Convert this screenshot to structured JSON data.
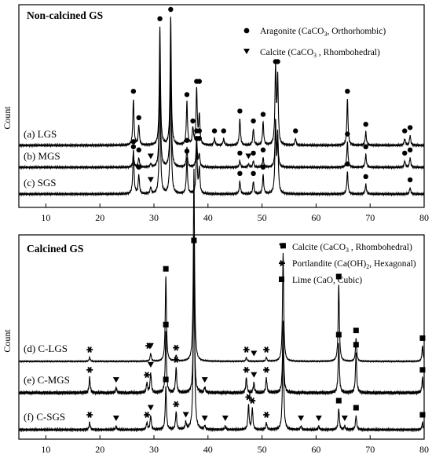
{
  "chart_data": [
    {
      "type": "line",
      "title": "Non-calcined GS",
      "xlabel": "",
      "ylabel": "Count",
      "xlim": [
        5,
        80
      ],
      "xticks": [
        10,
        20,
        30,
        40,
        50,
        60,
        70,
        80
      ],
      "legend": [
        {
          "marker": "circle",
          "label": "Aragonite (CaCO3, Orthorhombic)"
        },
        {
          "marker": "triangle",
          "label": "Calcite (CaCO3 , Rhombohedral)"
        }
      ],
      "series": [
        {
          "name": "(a) LGS",
          "peaks": [
            [
              26.2,
              14
            ],
            [
              27.2,
              6
            ],
            [
              31.1,
              36
            ],
            [
              33.1,
              39
            ],
            [
              36.1,
              13
            ],
            [
              37.2,
              5
            ],
            [
              37.9,
              17
            ],
            [
              38.4,
              9
            ],
            [
              41.2,
              2
            ],
            [
              42.9,
              2
            ],
            [
              45.9,
              8
            ],
            [
              48.4,
              5
            ],
            [
              50.2,
              7
            ],
            [
              52.5,
              23
            ],
            [
              52.9,
              20
            ],
            [
              56.2,
              2
            ],
            [
              65.8,
              14
            ],
            [
              69.2,
              4
            ],
            [
              76.4,
              2
            ],
            [
              77.4,
              3
            ]
          ],
          "markers": [
            {
              "x": 26.2,
              "type": "circle"
            },
            {
              "x": 27.2,
              "type": "circle"
            },
            {
              "x": 31.1,
              "type": "circle"
            },
            {
              "x": 33.1,
              "type": "circle"
            },
            {
              "x": 36.1,
              "type": "circle"
            },
            {
              "x": 37.2,
              "type": "circle"
            },
            {
              "x": 37.9,
              "type": "circle"
            },
            {
              "x": 38.4,
              "type": "circle"
            },
            {
              "x": 41.2,
              "type": "circle"
            },
            {
              "x": 42.9,
              "type": "circle"
            },
            {
              "x": 45.9,
              "type": "circle"
            },
            {
              "x": 48.4,
              "type": "circle"
            },
            {
              "x": 50.2,
              "type": "circle"
            },
            {
              "x": 52.5,
              "type": "circle"
            },
            {
              "x": 52.9,
              "type": "circle"
            },
            {
              "x": 56.2,
              "type": "circle"
            },
            {
              "x": 65.8,
              "type": "circle"
            },
            {
              "x": 69.2,
              "type": "circle"
            },
            {
              "x": 76.4,
              "type": "circle"
            },
            {
              "x": 77.4,
              "type": "circle"
            }
          ]
        },
        {
          "name": "(b) MGS",
          "peaks": [
            [
              26.2,
              4
            ],
            [
              27.2,
              3
            ],
            [
              29.4,
              1
            ],
            [
              31.1,
              34
            ],
            [
              33.1,
              38
            ],
            [
              36.1,
              6
            ],
            [
              37.9,
              9
            ],
            [
              38.4,
              4
            ],
            [
              45.9,
              2
            ],
            [
              47.5,
              1
            ],
            [
              48.4,
              2
            ],
            [
              50.2,
              3
            ],
            [
              52.5,
              12
            ],
            [
              52.9,
              9
            ],
            [
              65.8,
              8
            ],
            [
              69.2,
              4
            ],
            [
              76.4,
              2
            ],
            [
              77.4,
              3
            ]
          ],
          "markers": [
            {
              "x": 26.2,
              "type": "circle"
            },
            {
              "x": 27.2,
              "type": "circle"
            },
            {
              "x": 29.4,
              "type": "triangle"
            },
            {
              "x": 36.1,
              "type": "circle"
            },
            {
              "x": 37.9,
              "type": "circle"
            },
            {
              "x": 38.4,
              "type": "circle"
            },
            {
              "x": 45.9,
              "type": "circle"
            },
            {
              "x": 47.5,
              "type": "triangle"
            },
            {
              "x": 48.4,
              "type": "circle"
            },
            {
              "x": 50.2,
              "type": "circle"
            },
            {
              "x": 65.8,
              "type": "circle"
            },
            {
              "x": 69.2,
              "type": "circle"
            },
            {
              "x": 76.4,
              "type": "circle"
            },
            {
              "x": 77.4,
              "type": "circle"
            }
          ]
        },
        {
          "name": "(c) SGS",
          "peaks": [
            [
              26.2,
              14
            ],
            [
              27.2,
              6
            ],
            [
              29.4,
              2
            ],
            [
              31.1,
              36
            ],
            [
              33.1,
              39
            ],
            [
              36.1,
              11
            ],
            [
              37.9,
              15
            ],
            [
              38.4,
              8
            ],
            [
              45.9,
              4
            ],
            [
              48.4,
              4
            ],
            [
              50.2,
              6
            ],
            [
              52.5,
              22
            ],
            [
              52.9,
              18
            ],
            [
              65.8,
              7
            ],
            [
              69.2,
              3
            ],
            [
              77.4,
              2
            ]
          ],
          "markers": [
            {
              "x": 26.2,
              "type": "circle"
            },
            {
              "x": 27.2,
              "type": "circle"
            },
            {
              "x": 29.4,
              "type": "triangle"
            },
            {
              "x": 36.1,
              "type": "circle"
            },
            {
              "x": 37.9,
              "type": "circle"
            },
            {
              "x": 38.4,
              "type": "circle"
            },
            {
              "x": 45.9,
              "type": "circle"
            },
            {
              "x": 48.4,
              "type": "circle"
            },
            {
              "x": 50.2,
              "type": "circle"
            },
            {
              "x": 65.8,
              "type": "circle"
            },
            {
              "x": 69.2,
              "type": "circle"
            },
            {
              "x": 77.4,
              "type": "circle"
            }
          ]
        }
      ]
    },
    {
      "type": "line",
      "title": "Calcined GS",
      "xlabel": "",
      "ylabel": "Count",
      "xlim": [
        5,
        80
      ],
      "xticks": [
        10,
        20,
        30,
        40,
        50,
        60,
        70,
        80
      ],
      "legend": [
        {
          "marker": "triangle",
          "label": "Calcite (CaCO3 , Rhombohedral)"
        },
        {
          "marker": "star",
          "label": "Portlandite (Ca(OH)2, Hexagonal)"
        },
        {
          "marker": "square",
          "label": "Lime (CaO, Cubic)"
        }
      ],
      "series": [
        {
          "name": "(d) C-LGS",
          "peaks": [
            [
              18.1,
              2
            ],
            [
              29.4,
              4
            ],
            [
              32.2,
              44
            ],
            [
              34.1,
              3
            ],
            [
              37.4,
              100
            ],
            [
              47.1,
              2
            ],
            [
              50.8,
              2
            ],
            [
              53.9,
              56
            ],
            [
              64.2,
              40
            ],
            [
              67.4,
              12
            ],
            [
              79.7,
              8
            ]
          ],
          "markers": [
            {
              "x": 18.1,
              "type": "star"
            },
            {
              "x": 29.0,
              "type": "star"
            },
            {
              "x": 29.4,
              "type": "triangle"
            },
            {
              "x": 32.2,
              "type": "square"
            },
            {
              "x": 34.1,
              "type": "star"
            },
            {
              "x": 37.4,
              "type": "square"
            },
            {
              "x": 47.1,
              "type": "star"
            },
            {
              "x": 48.5,
              "type": "triangle"
            },
            {
              "x": 50.8,
              "type": "star"
            },
            {
              "x": 53.9,
              "type": "square"
            },
            {
              "x": 64.2,
              "type": "square"
            },
            {
              "x": 67.4,
              "type": "square"
            },
            {
              "x": 79.7,
              "type": "square"
            }
          ]
        },
        {
          "name": "(e) C-MGS",
          "peaks": [
            [
              18.1,
              3
            ],
            [
              23.0,
              1
            ],
            [
              28.7,
              2
            ],
            [
              29.4,
              4
            ],
            [
              32.2,
              12
            ],
            [
              34.1,
              5
            ],
            [
              37.4,
              25
            ],
            [
              39.4,
              1
            ],
            [
              47.1,
              3
            ],
            [
              48.5,
              2
            ],
            [
              50.8,
              3
            ],
            [
              53.9,
              14
            ],
            [
              64.2,
              10
            ],
            [
              67.4,
              8
            ],
            [
              79.7,
              3
            ]
          ],
          "markers": [
            {
              "x": 18.1,
              "type": "star"
            },
            {
              "x": 23.0,
              "type": "triangle"
            },
            {
              "x": 28.7,
              "type": "star"
            },
            {
              "x": 29.4,
              "type": "triangle"
            },
            {
              "x": 32.2,
              "type": "square"
            },
            {
              "x": 34.1,
              "type": "star"
            },
            {
              "x": 39.4,
              "type": "triangle"
            },
            {
              "x": 47.1,
              "type": "star"
            },
            {
              "x": 48.5,
              "type": "triangle"
            },
            {
              "x": 50.8,
              "type": "star"
            },
            {
              "x": 64.2,
              "type": "square"
            },
            {
              "x": 67.4,
              "type": "square"
            },
            {
              "x": 79.7,
              "type": "square"
            }
          ]
        },
        {
          "name": "(f) C-SGS",
          "peaks": [
            [
              18.1,
              2
            ],
            [
              23.0,
              1
            ],
            [
              28.7,
              2
            ],
            [
              29.4,
              4
            ],
            [
              32.2,
              12
            ],
            [
              34.1,
              5
            ],
            [
              35.9,
              2
            ],
            [
              37.4,
              55
            ],
            [
              39.4,
              1
            ],
            [
              43.2,
              1
            ],
            [
              47.5,
              7
            ],
            [
              48.2,
              6
            ],
            [
              50.8,
              2
            ],
            [
              53.9,
              28
            ],
            [
              57.2,
              1
            ],
            [
              60.5,
              1
            ],
            [
              64.2,
              6
            ],
            [
              65.3,
              1
            ],
            [
              67.4,
              4
            ],
            [
              79.7,
              2
            ]
          ],
          "markers": [
            {
              "x": 18.1,
              "type": "star"
            },
            {
              "x": 23.0,
              "type": "triangle"
            },
            {
              "x": 28.7,
              "type": "star"
            },
            {
              "x": 29.4,
              "type": "triangle"
            },
            {
              "x": 32.2,
              "type": "square"
            },
            {
              "x": 34.1,
              "type": "star"
            },
            {
              "x": 35.9,
              "type": "triangle"
            },
            {
              "x": 39.4,
              "type": "triangle"
            },
            {
              "x": 43.2,
              "type": "triangle"
            },
            {
              "x": 47.5,
              "type": "star"
            },
            {
              "x": 48.2,
              "type": "star"
            },
            {
              "x": 50.8,
              "type": "star"
            },
            {
              "x": 57.2,
              "type": "triangle"
            },
            {
              "x": 60.5,
              "type": "triangle"
            },
            {
              "x": 64.2,
              "type": "square"
            },
            {
              "x": 65.3,
              "type": "triangle"
            },
            {
              "x": 67.4,
              "type": "square"
            },
            {
              "x": 79.7,
              "type": "square"
            }
          ]
        }
      ]
    }
  ]
}
